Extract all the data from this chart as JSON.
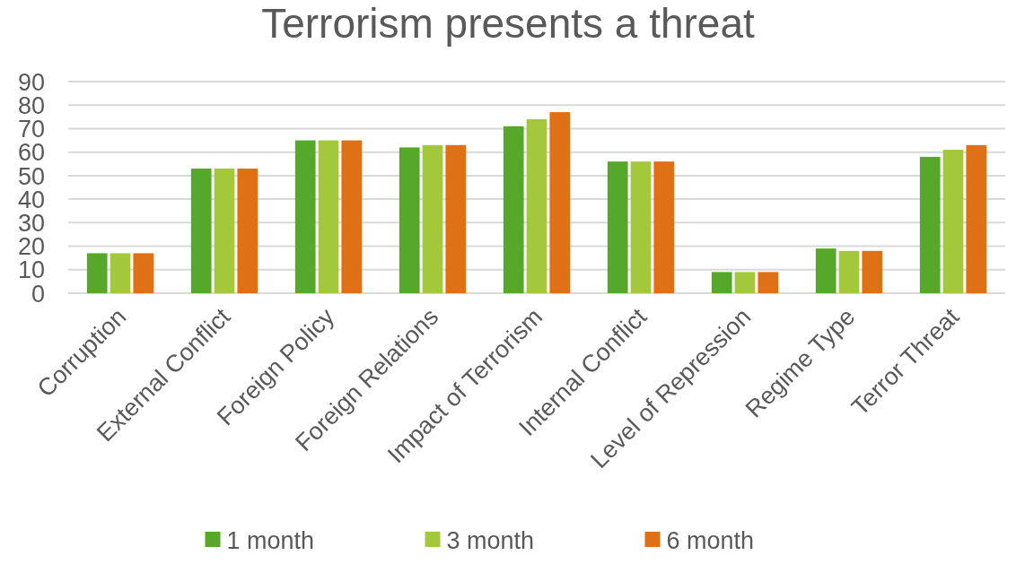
{
  "chart_data": {
    "type": "bar",
    "title": "Terrorism presents a threat",
    "categories": [
      "Corruption",
      "External Conflict",
      "Foreign Policy",
      "Foreign Relations",
      "Impact of Terrorism",
      "Internal Conflict",
      "Level of Repression",
      "Regime Type",
      "Terror Threat"
    ],
    "series": [
      {
        "name": "1 month",
        "color": "#55a82a",
        "values": [
          17,
          53,
          65,
          62,
          71,
          56,
          9,
          19,
          58
        ]
      },
      {
        "name": "3 month",
        "color": "#a3c83b",
        "values": [
          17,
          53,
          65,
          63,
          74,
          56,
          9,
          18,
          61
        ]
      },
      {
        "name": "6 month",
        "color": "#e07015",
        "values": [
          17,
          53,
          65,
          63,
          77,
          56,
          9,
          18,
          63
        ]
      }
    ],
    "ylim": [
      0,
      90
    ],
    "yticks": [
      0,
      10,
      20,
      30,
      40,
      50,
      60,
      70,
      80,
      90
    ],
    "grid": "y",
    "legend": "bottom"
  }
}
